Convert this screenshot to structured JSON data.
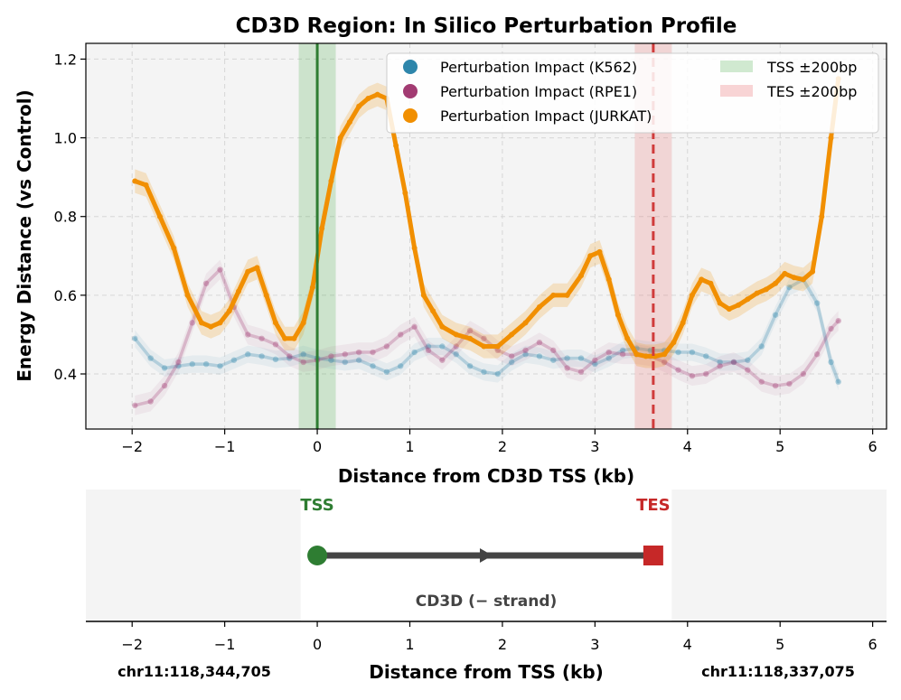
{
  "chart_data": [
    {
      "type": "line",
      "title": "CD3D Region: In Silico Perturbation Profile",
      "xlabel": "Distance from CD3D TSS (kb)",
      "ylabel": "Energy Distance (vs Control)",
      "xlim": [
        -2.5,
        6.15
      ],
      "ylim": [
        0.26,
        1.24
      ],
      "xticks": [
        -2,
        -1,
        0,
        1,
        2,
        3,
        4,
        5,
        6
      ],
      "xtick_labels": [
        "−2",
        "−1",
        "0",
        "1",
        "2",
        "3",
        "4",
        "5",
        "6"
      ],
      "yticks": [
        0.4,
        0.6,
        0.8,
        1.0,
        1.2
      ],
      "ytick_labels": [
        "0.4",
        "0.6",
        "0.8",
        "1.0",
        "1.2"
      ],
      "grid": true,
      "legend_position": "top-right",
      "series": [
        {
          "name": "Perturbation Impact (K562)",
          "color": "#2e86ab",
          "x": [
            -1.97,
            -1.8,
            -1.65,
            -1.5,
            -1.35,
            -1.2,
            -1.05,
            -0.9,
            -0.75,
            -0.6,
            -0.45,
            -0.3,
            -0.15,
            0.0,
            0.15,
            0.3,
            0.45,
            0.6,
            0.75,
            0.9,
            1.05,
            1.2,
            1.35,
            1.5,
            1.65,
            1.8,
            1.95,
            2.1,
            2.25,
            2.4,
            2.55,
            2.7,
            2.85,
            3.0,
            3.15,
            3.3,
            3.45,
            3.6,
            3.75,
            3.9,
            4.05,
            4.2,
            4.35,
            4.5,
            4.65,
            4.8,
            4.95,
            5.1,
            5.25,
            5.4,
            5.55,
            5.63
          ],
          "values": [
            0.49,
            0.44,
            0.415,
            0.42,
            0.425,
            0.425,
            0.42,
            0.435,
            0.45,
            0.445,
            0.437,
            0.44,
            0.45,
            0.44,
            0.435,
            0.43,
            0.435,
            0.42,
            0.405,
            0.42,
            0.455,
            0.47,
            0.47,
            0.45,
            0.42,
            0.405,
            0.4,
            0.43,
            0.45,
            0.445,
            0.435,
            0.44,
            0.44,
            0.425,
            0.44,
            0.46,
            0.465,
            0.46,
            0.46,
            0.455,
            0.455,
            0.445,
            0.43,
            0.43,
            0.435,
            0.47,
            0.55,
            0.62,
            0.64,
            0.58,
            0.43,
            0.38
          ]
        },
        {
          "name": "Perturbation Impact (RPE1)",
          "color": "#a23b72",
          "x": [
            -1.97,
            -1.8,
            -1.65,
            -1.5,
            -1.35,
            -1.2,
            -1.05,
            -0.9,
            -0.75,
            -0.6,
            -0.45,
            -0.3,
            -0.15,
            0.0,
            0.15,
            0.3,
            0.45,
            0.6,
            0.75,
            0.9,
            1.05,
            1.2,
            1.35,
            1.5,
            1.65,
            1.8,
            1.95,
            2.1,
            2.25,
            2.4,
            2.55,
            2.7,
            2.85,
            3.0,
            3.15,
            3.3,
            3.45,
            3.6,
            3.75,
            3.9,
            4.05,
            4.2,
            4.35,
            4.5,
            4.65,
            4.8,
            4.95,
            5.1,
            5.25,
            5.4,
            5.55,
            5.63
          ],
          "values": [
            0.32,
            0.33,
            0.37,
            0.43,
            0.53,
            0.63,
            0.665,
            0.57,
            0.5,
            0.49,
            0.475,
            0.445,
            0.43,
            0.435,
            0.445,
            0.45,
            0.455,
            0.455,
            0.47,
            0.5,
            0.52,
            0.46,
            0.435,
            0.47,
            0.51,
            0.49,
            0.46,
            0.445,
            0.46,
            0.48,
            0.46,
            0.415,
            0.405,
            0.435,
            0.455,
            0.45,
            0.45,
            0.445,
            0.43,
            0.41,
            0.395,
            0.4,
            0.42,
            0.43,
            0.41,
            0.38,
            0.37,
            0.375,
            0.4,
            0.45,
            0.515,
            0.535
          ]
        },
        {
          "name": "Perturbation Impact (JURKAT)",
          "color": "#f18f01",
          "x": [
            -1.97,
            -1.85,
            -1.7,
            -1.55,
            -1.4,
            -1.25,
            -1.15,
            -1.05,
            -0.95,
            -0.85,
            -0.75,
            -0.65,
            -0.55,
            -0.45,
            -0.35,
            -0.25,
            -0.15,
            -0.05,
            0.05,
            0.15,
            0.25,
            0.35,
            0.45,
            0.55,
            0.65,
            0.75,
            0.85,
            0.95,
            1.05,
            1.15,
            1.25,
            1.35,
            1.5,
            1.65,
            1.8,
            1.95,
            2.1,
            2.25,
            2.4,
            2.55,
            2.7,
            2.85,
            2.95,
            3.05,
            3.15,
            3.25,
            3.35,
            3.45,
            3.55,
            3.65,
            3.75,
            3.85,
            3.95,
            4.05,
            4.15,
            4.25,
            4.35,
            4.45,
            4.55,
            4.65,
            4.75,
            4.85,
            4.95,
            5.05,
            5.15,
            5.25,
            5.35,
            5.45,
            5.55,
            5.63
          ],
          "values": [
            0.89,
            0.88,
            0.8,
            0.72,
            0.6,
            0.53,
            0.52,
            0.53,
            0.56,
            0.61,
            0.66,
            0.67,
            0.6,
            0.53,
            0.49,
            0.49,
            0.53,
            0.62,
            0.77,
            0.89,
            1.0,
            1.04,
            1.08,
            1.1,
            1.11,
            1.1,
            0.98,
            0.86,
            0.72,
            0.6,
            0.56,
            0.52,
            0.5,
            0.49,
            0.47,
            0.47,
            0.5,
            0.53,
            0.57,
            0.6,
            0.6,
            0.65,
            0.7,
            0.71,
            0.64,
            0.55,
            0.49,
            0.45,
            0.445,
            0.445,
            0.45,
            0.48,
            0.53,
            0.6,
            0.64,
            0.63,
            0.58,
            0.565,
            0.575,
            0.59,
            0.605,
            0.615,
            0.63,
            0.655,
            0.645,
            0.64,
            0.66,
            0.8,
            1.0,
            1.15
          ]
        }
      ],
      "bands": [
        {
          "name": "TSS ±200bp",
          "x_range": [
            -0.2,
            0.2
          ],
          "color": "#2ca02c"
        },
        {
          "name": "TES ±200bp",
          "x_range": [
            3.43,
            3.83
          ],
          "color": "#e8686a"
        }
      ],
      "vlines": [
        {
          "name": "TSS",
          "x": 0.0,
          "color": "#2e7d32",
          "style": "solid"
        },
        {
          "name": "TES",
          "x": 3.63,
          "color": "#d03b3b",
          "style": "dashed"
        }
      ]
    },
    {
      "type": "gene-track",
      "xlabel": "Distance from TSS (kb)",
      "xticks": [
        -2,
        -1,
        0,
        1,
        2,
        3,
        4,
        5,
        6
      ],
      "xtick_labels": [
        "−2",
        "−1",
        "0",
        "1",
        "2",
        "3",
        "4",
        "5",
        "6"
      ],
      "gene_name": "CD3D (− strand)",
      "tss_label": "TSS",
      "tes_label": "TES",
      "tss_x": 0.0,
      "tes_x": 3.63,
      "gene_body_range": [
        -0.18,
        3.83
      ],
      "left_coord": "chr11:118,344,705",
      "right_coord": "chr11:118,337,075",
      "tss_color": "#2e7d32",
      "tes_color": "#c62828"
    }
  ]
}
